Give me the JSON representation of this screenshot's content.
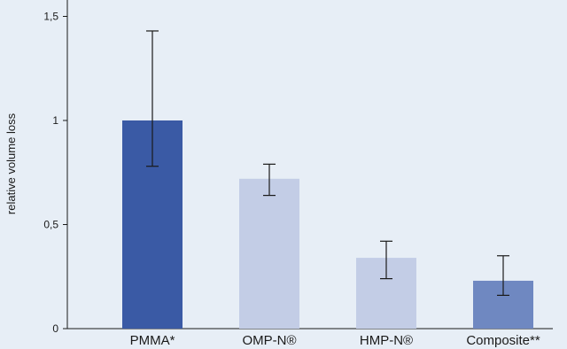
{
  "chart_data": {
    "type": "bar",
    "categories": [
      "PMMA*",
      "OMP-N®",
      "HMP-N®",
      "Composite**"
    ],
    "values": [
      1.0,
      0.72,
      0.34,
      0.23
    ],
    "error_low": [
      0.78,
      0.64,
      0.24,
      0.16
    ],
    "error_high": [
      1.43,
      0.79,
      0.42,
      0.35
    ],
    "bar_colors": [
      "#3a5aa5",
      "#c3cde6",
      "#c3cde6",
      "#6f88c1"
    ],
    "background": "#e7eef6",
    "title": "",
    "xlabel": "",
    "ylabel": "relative volume loss",
    "ylim": [
      0,
      1.6
    ],
    "yticks": [
      0,
      0.5,
      1,
      1.5
    ],
    "ytick_labels": [
      "0",
      "0,5",
      "1",
      "1,5"
    ],
    "grid": false,
    "legend": "none"
  }
}
